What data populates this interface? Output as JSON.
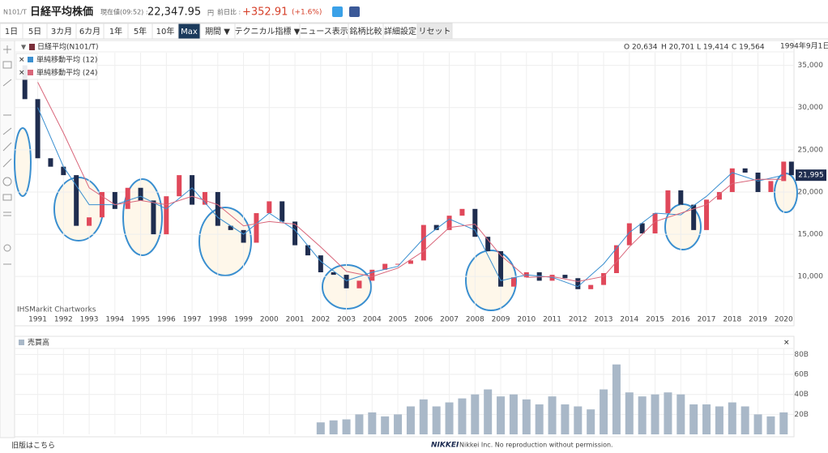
{
  "header": {
    "code": "N101/T",
    "title": "日経平均株価",
    "price_label": "現在値(09:52) :",
    "price": "22,347.95",
    "price_unit": "円",
    "change_label": "前日比 :",
    "change": "+352.91",
    "change_pct": "(+1.6%)"
  },
  "toolbar": [
    "1日",
    "5日",
    "3カ月",
    "6カ月",
    "1年",
    "5年",
    "10年",
    "Max",
    "期間 ▼",
    "テクニカル指標 ▼",
    "ニュース表示",
    "銘柄比較",
    "詳細設定",
    "リセット"
  ],
  "info": {
    "ohlc": [
      "O 20,634",
      "H 20,701",
      "L 19,414",
      "C 19,564"
    ],
    "date": "1994年9月1日",
    "source": "IHSMarkit Chartworks"
  },
  "footer": {
    "old": "旧版はこちら",
    "brand": "NIKKEI",
    "copyright": "Nikkei Inc. No reproduction without permission."
  },
  "chart_data": [
    {
      "type": "line",
      "xlim": [
        1990.1,
        2020.4
      ],
      "xticks": [
        1991,
        1992,
        1993,
        1994,
        1995,
        1996,
        1997,
        1998,
        1999,
        2000,
        2001,
        2002,
        2003,
        2004,
        2005,
        2006,
        2007,
        2008,
        2009,
        2010,
        2011,
        2012,
        2013,
        2014,
        2015,
        2016,
        2017,
        2018,
        2019,
        2020
      ],
      "ylim": [
        5700,
        36500
      ],
      "yticks": [
        {
          "value": 10000,
          "label": "10,000"
        },
        {
          "value": 15000,
          "label": "15,000"
        },
        {
          "value": 20000,
          "label": "20,000"
        },
        {
          "value": 25000,
          "label": "25,000"
        },
        {
          "value": 30000,
          "label": "30,000"
        },
        {
          "value": 35000,
          "label": "35,000"
        }
      ],
      "grid": true,
      "last_value": {
        "value": 21995,
        "label": "21,995"
      },
      "series": [
        {
          "name": "日経平均(N101/T)",
          "style": "candles",
          "up_color": "#e0485a",
          "down_color": "#1f2d4f",
          "color": "#1f2d4f",
          "x": [
            1990.2,
            1990.5,
            1991.0,
            1991.5,
            1992.0,
            1992.5,
            1993.0,
            1993.5,
            1994.0,
            1994.5,
            1995.0,
            1995.5,
            1996.0,
            1996.5,
            1997.0,
            1997.5,
            1998.0,
            1998.5,
            1999.0,
            1999.5,
            2000.0,
            2000.5,
            2001.0,
            2001.5,
            2002.0,
            2002.5,
            2003.0,
            2003.5,
            2004.0,
            2004.5,
            2005.0,
            2005.5,
            2006.0,
            2006.5,
            2007.0,
            2007.5,
            2008.0,
            2008.5,
            2009.0,
            2009.5,
            2010.0,
            2010.5,
            2011.0,
            2011.5,
            2012.0,
            2012.5,
            2013.0,
            2013.5,
            2014.0,
            2014.5,
            2015.0,
            2015.5,
            2016.0,
            2016.5,
            2017.0,
            2017.5,
            2018.0,
            2018.5,
            2019.0,
            2019.5,
            2020.0,
            2020.3
          ],
          "values": [
            35000,
            31000,
            24000,
            23000,
            22000,
            16000,
            17000,
            20000,
            18000,
            20500,
            19000,
            15000,
            19500,
            22000,
            18500,
            20000,
            16000,
            15500,
            14000,
            17500,
            18900,
            16500,
            13700,
            12500,
            10500,
            10200,
            8600,
            9500,
            10800,
            11500,
            11500,
            11900,
            16100,
            15500,
            17200,
            18000,
            14700,
            13000,
            8800,
            9900,
            10500,
            9500,
            10200,
            9800,
            8500,
            9000,
            10400,
            13700,
            16300,
            15100,
            17500,
            20200,
            18500,
            15500,
            19100,
            20000,
            22800,
            22300,
            20000,
            21300,
            23600,
            21995
          ]
        },
        {
          "name": "単純移動平均 (12)",
          "color": "#3a8fd0",
          "x": [
            1991,
            1992,
            1993,
            1994,
            1995,
            1996,
            1997,
            1998,
            1999,
            2000,
            2001,
            2002,
            2003,
            2004,
            2005,
            2006,
            2007,
            2008,
            2009,
            2010,
            2011,
            2012,
            2013,
            2014,
            2015,
            2016,
            2017,
            2018,
            2019,
            2020
          ],
          "values": [
            30000,
            23000,
            18500,
            18500,
            19500,
            18000,
            20500,
            17000,
            15000,
            17500,
            15500,
            11800,
            9500,
            10500,
            11200,
            14500,
            16800,
            15500,
            9500,
            10200,
            9900,
            8800,
            11500,
            15200,
            17500,
            17300,
            19500,
            22300,
            21300,
            22000
          ]
        },
        {
          "name": "単純移動平均 (24)",
          "color": "#d9667a",
          "x": [
            1991,
            1992,
            1993,
            1994,
            1995,
            1996,
            1997,
            1998,
            1999,
            2000,
            2001,
            2002,
            2003,
            2004,
            2005,
            2006,
            2007,
            2008,
            2009,
            2010,
            2011,
            2012,
            2013,
            2014,
            2015,
            2016,
            2017,
            2018,
            2019,
            2020
          ],
          "values": [
            33000,
            27000,
            20500,
            18500,
            19000,
            18500,
            19500,
            18500,
            16000,
            16500,
            16200,
            13500,
            10600,
            10000,
            11000,
            13000,
            15800,
            16200,
            12500,
            9900,
            10000,
            9400,
            10000,
            13500,
            16500,
            17500,
            18500,
            21000,
            21500,
            21500
          ]
        }
      ]
    },
    {
      "type": "bar",
      "title": "売買高",
      "color": "#a9b8c8",
      "xlim": [
        1990.1,
        2020.4
      ],
      "ylim": [
        0,
        86
      ],
      "yticks": [
        {
          "value": 20,
          "label": "20B"
        },
        {
          "value": 40,
          "label": "40B"
        },
        {
          "value": 60,
          "label": "60B"
        },
        {
          "value": 80,
          "label": "80B"
        }
      ],
      "x": [
        2002.0,
        2002.5,
        2003.0,
        2003.5,
        2004.0,
        2004.5,
        2005.0,
        2005.5,
        2006.0,
        2006.5,
        2007.0,
        2007.5,
        2008.0,
        2008.5,
        2009.0,
        2009.5,
        2010.0,
        2010.5,
        2011.0,
        2011.5,
        2012.0,
        2012.5,
        2013.0,
        2013.5,
        2014.0,
        2014.5,
        2015.0,
        2015.5,
        2016.0,
        2016.5,
        2017.0,
        2017.5,
        2018.0,
        2018.5,
        2019.0,
        2019.5,
        2020.0
      ],
      "values": [
        12,
        14,
        15,
        20,
        22,
        18,
        20,
        28,
        35,
        28,
        32,
        36,
        40,
        45,
        38,
        40,
        35,
        30,
        38,
        30,
        28,
        25,
        45,
        70,
        42,
        38,
        40,
        42,
        40,
        30,
        30,
        28,
        32,
        28,
        20,
        18,
        22
      ]
    }
  ]
}
